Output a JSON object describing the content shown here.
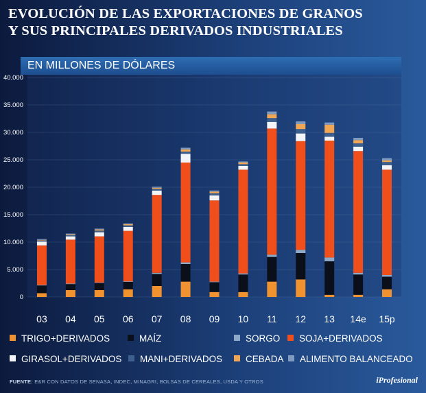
{
  "header": {
    "title_line1": "EVOLUCIÓN DE LAS EXPORTACIONES DE GRANOS",
    "title_line2": "Y SUS PRINCIPALES DERIVADOS INDUSTRIALES",
    "subtitle": "EN MILLONES DE DÓLARES"
  },
  "chart_data": {
    "type": "bar",
    "stacked": true,
    "title": "EVOLUCIÓN DE LAS EXPORTACIONES DE GRANOS Y SUS PRINCIPALES DERIVADOS INDUSTRIALES",
    "ylabel": "EN MILLONES DE DÓLARES",
    "ylim": [
      0,
      40000
    ],
    "yticks": [
      "0",
      "5.000",
      "10.000",
      "15.000",
      "20.000",
      "25.000",
      "30.000",
      "35.000",
      "40.000"
    ],
    "ytick_values": [
      0,
      5000,
      10000,
      15000,
      20000,
      25000,
      30000,
      35000,
      40000
    ],
    "categories": [
      "03",
      "04",
      "05",
      "06",
      "07",
      "08",
      "09",
      "10",
      "11",
      "12",
      "13",
      "14e",
      "15p"
    ],
    "series": [
      {
        "name": "TRIGO+DERIVADOS",
        "color": "#f0922f",
        "values": [
          700,
          1250,
          1250,
          1400,
          2000,
          2800,
          900,
          900,
          2800,
          3200,
          400,
          400,
          1400
        ]
      },
      {
        "name": "MAÍZ",
        "color": "#0b0f1a",
        "values": [
          1400,
          1100,
          1300,
          1350,
          2200,
          3200,
          1800,
          3200,
          4500,
          4800,
          6100,
          3700,
          2300
        ]
      },
      {
        "name": "SORGO",
        "color": "#8fa9c8",
        "values": [
          100,
          100,
          100,
          100,
          200,
          300,
          100,
          200,
          400,
          600,
          700,
          300,
          300
        ]
      },
      {
        "name": "SOJA+DERIVADOS",
        "color": "#f04f1c",
        "values": [
          7200,
          8000,
          8400,
          9200,
          14200,
          18200,
          14800,
          18900,
          23000,
          19800,
          21300,
          22200,
          19200
        ]
      },
      {
        "name": "GIRASOL+DERIVADOS",
        "color": "#f2f4f8",
        "values": [
          700,
          600,
          750,
          700,
          800,
          1600,
          900,
          700,
          1200,
          1400,
          700,
          800,
          800
        ]
      },
      {
        "name": "MANI+DERIVADOS",
        "color": "#3c5f8e",
        "values": [
          200,
          200,
          300,
          300,
          300,
          400,
          400,
          300,
          700,
          800,
          700,
          600,
          600
        ]
      },
      {
        "name": "CEBADA",
        "color": "#f0a652",
        "values": [
          100,
          150,
          200,
          200,
          200,
          400,
          300,
          300,
          700,
          900,
          1500,
          600,
          300
        ]
      },
      {
        "name": "ALIMENTO BALANCEADO",
        "color": "#7f9bbf",
        "values": [
          150,
          150,
          150,
          150,
          200,
          300,
          200,
          200,
          500,
          500,
          400,
          400,
          400
        ]
      }
    ]
  },
  "footer": {
    "source_label": "FUENTE:",
    "source_text": " E&R CON DATOS DE SENASA, INDEC, MINAGRI, BOLSAS DE CEREALES, USDA Y OTROS",
    "brand": "iProfesional"
  }
}
